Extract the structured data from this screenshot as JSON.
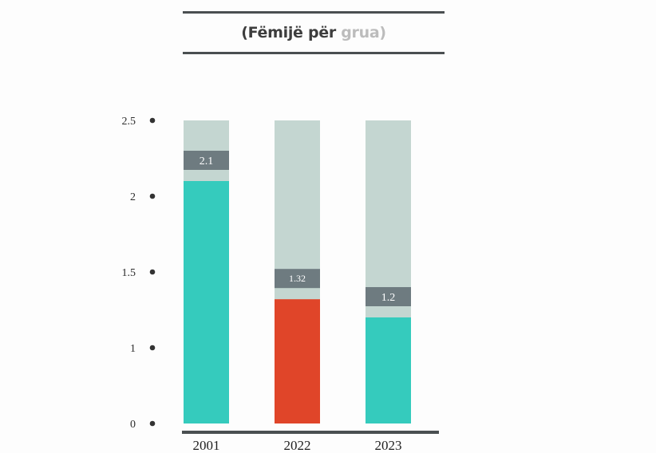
{
  "title": {
    "open": "(",
    "main": "Fëmijë për ",
    "muted": "grua",
    "close": ")"
  },
  "colors": {
    "background_bar": "#c4d6d1",
    "teal": "#35cbbd",
    "red": "#e04529",
    "label_box": "#6e7b80",
    "axis": "#4a4f51",
    "dot": "#333333"
  },
  "chart_data": {
    "type": "bar",
    "title": "(Fëmijë për grua)",
    "categories": [
      "2001",
      "2022",
      "2023"
    ],
    "values": [
      2.1,
      1.32,
      1.2
    ],
    "value_labels": [
      "2.1",
      "1.32",
      "1.2"
    ],
    "bar_colors": [
      "#35cbbd",
      "#e04529",
      "#35cbbd"
    ],
    "background_max": 2.5,
    "yticks": [
      0,
      1,
      1.5,
      2,
      2.5
    ],
    "ytick_labels": [
      "0",
      "1",
      "1.5",
      "2",
      "2.5"
    ],
    "xlabel": "",
    "ylabel": "",
    "grid": false,
    "legend": "none"
  }
}
